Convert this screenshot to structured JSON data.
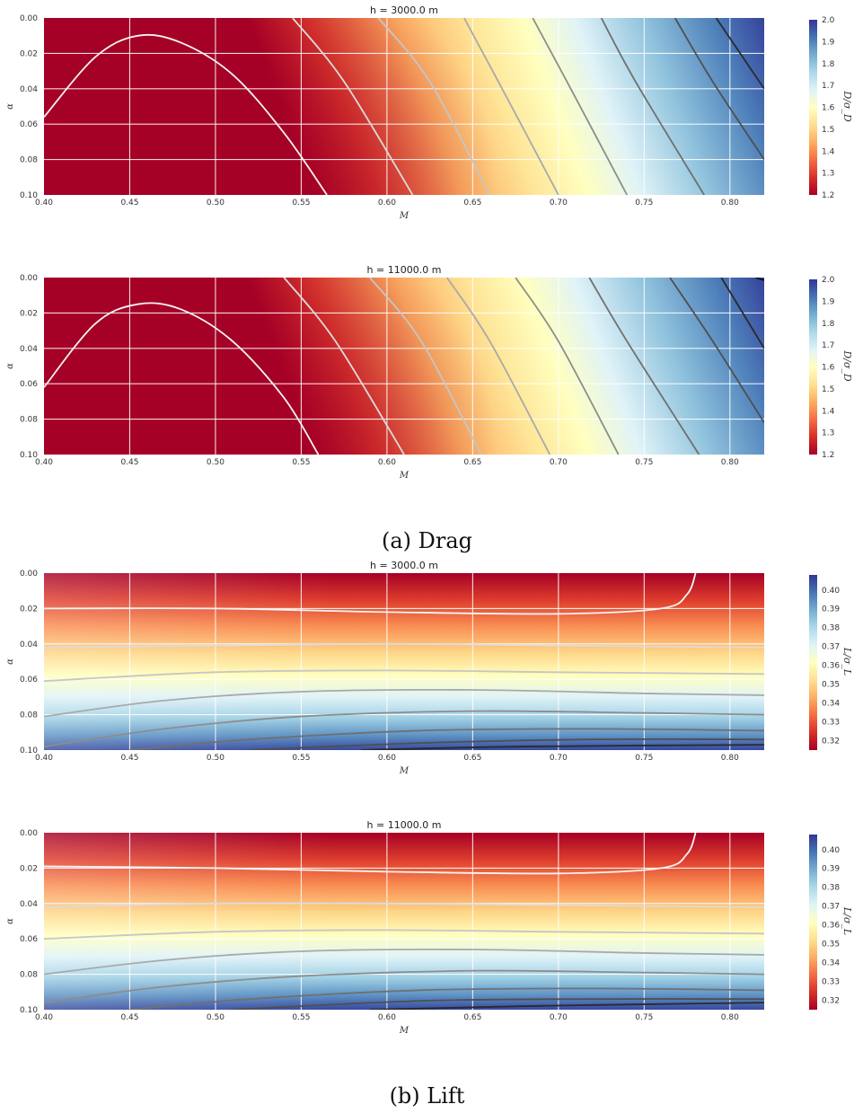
{
  "captions": {
    "a": "(a) Drag",
    "b": "(b) Lift"
  },
  "colormap": [
    "#a50026",
    "#d73027",
    "#f46d43",
    "#fdae61",
    "#fee090",
    "#ffffbf",
    "#e0f3f8",
    "#abd9e9",
    "#74add1",
    "#4575b4",
    "#313695"
  ],
  "chart_data": [
    {
      "type": "heatmap",
      "group": "drag",
      "title": "h = 3000.0 m",
      "xlabel": "M",
      "ylabel": "α",
      "colorbar_label": "D/σ_D",
      "xlim": [
        0.4,
        0.82
      ],
      "ylim": [
        0.0,
        0.1
      ],
      "y_inverted": true,
      "xticks": [
        "0.40",
        "0.45",
        "0.50",
        "0.55",
        "0.60",
        "0.65",
        "0.70",
        "0.75",
        "0.80"
      ],
      "yticks": [
        "0.00",
        "0.02",
        "0.04",
        "0.06",
        "0.08",
        "0.10"
      ],
      "color_range": [
        1.2,
        2.0
      ],
      "cbar_ticks": [
        "1.2",
        "1.3",
        "1.4",
        "1.5",
        "1.6",
        "1.7",
        "1.8",
        "1.9",
        "2.0"
      ],
      "contours": [
        {
          "points": [
            [
              0.4,
              0.056
            ],
            [
              0.43,
              0.022
            ],
            [
              0.455,
              0.01
            ],
            [
              0.48,
              0.014
            ],
            [
              0.51,
              0.032
            ],
            [
              0.54,
              0.065
            ],
            [
              0.565,
              0.1
            ]
          ]
        },
        {
          "points": [
            [
              0.545,
              0.0
            ],
            [
              0.575,
              0.036
            ],
            [
              0.615,
              0.1
            ]
          ]
        },
        {
          "points": [
            [
              0.595,
              0.0
            ],
            [
              0.625,
              0.036
            ],
            [
              0.66,
              0.1
            ]
          ]
        },
        {
          "points": [
            [
              0.645,
              0.0
            ],
            [
              0.665,
              0.036
            ],
            [
              0.7,
              0.1
            ]
          ]
        },
        {
          "points": [
            [
              0.685,
              0.0
            ],
            [
              0.705,
              0.036
            ],
            [
              0.74,
              0.1
            ]
          ]
        },
        {
          "points": [
            [
              0.725,
              0.0
            ],
            [
              0.745,
              0.036
            ],
            [
              0.785,
              0.1
            ]
          ]
        },
        {
          "points": [
            [
              0.768,
              0.0
            ],
            [
              0.79,
              0.036
            ],
            [
              0.82,
              0.08
            ]
          ]
        },
        {
          "points": [
            [
              0.792,
              0.0
            ],
            [
              0.82,
              0.04
            ]
          ]
        }
      ]
    },
    {
      "type": "heatmap",
      "group": "drag",
      "title": "h = 11000.0 m",
      "xlabel": "M",
      "ylabel": "α",
      "colorbar_label": "D/σ_D",
      "xlim": [
        0.4,
        0.82
      ],
      "ylim": [
        0.0,
        0.1
      ],
      "y_inverted": true,
      "xticks": [
        "0.40",
        "0.45",
        "0.50",
        "0.55",
        "0.60",
        "0.65",
        "0.70",
        "0.75",
        "0.80"
      ],
      "yticks": [
        "0.00",
        "0.02",
        "0.04",
        "0.06",
        "0.08",
        "0.10"
      ],
      "color_range": [
        1.2,
        2.0
      ],
      "cbar_ticks": [
        "1.2",
        "1.3",
        "1.4",
        "1.5",
        "1.6",
        "1.7",
        "1.8",
        "1.9",
        "2.0"
      ],
      "contours": [
        {
          "points": [
            [
              0.4,
              0.062
            ],
            [
              0.43,
              0.026
            ],
            [
              0.455,
              0.015
            ],
            [
              0.48,
              0.018
            ],
            [
              0.51,
              0.036
            ],
            [
              0.54,
              0.068
            ],
            [
              0.56,
              0.1
            ]
          ]
        },
        {
          "points": [
            [
              0.54,
              0.0
            ],
            [
              0.57,
              0.036
            ],
            [
              0.61,
              0.1
            ]
          ]
        },
        {
          "points": [
            [
              0.59,
              0.0
            ],
            [
              0.62,
              0.036
            ],
            [
              0.655,
              0.1
            ]
          ]
        },
        {
          "points": [
            [
              0.635,
              0.0
            ],
            [
              0.66,
              0.036
            ],
            [
              0.695,
              0.1
            ]
          ]
        },
        {
          "points": [
            [
              0.675,
              0.0
            ],
            [
              0.7,
              0.036
            ],
            [
              0.735,
              0.1
            ]
          ]
        },
        {
          "points": [
            [
              0.718,
              0.0
            ],
            [
              0.74,
              0.036
            ],
            [
              0.782,
              0.1
            ]
          ]
        },
        {
          "points": [
            [
              0.765,
              0.0
            ],
            [
              0.79,
              0.036
            ],
            [
              0.82,
              0.082
            ]
          ]
        },
        {
          "points": [
            [
              0.795,
              0.0
            ],
            [
              0.82,
              0.04
            ]
          ]
        },
        {
          "points": [
            [
              0.815,
              0.0
            ],
            [
              0.822,
              0.002
            ]
          ]
        }
      ]
    },
    {
      "type": "heatmap",
      "group": "lift",
      "title": "h = 3000.0 m",
      "xlabel": "M",
      "ylabel": "α",
      "colorbar_label": "L/σ_L",
      "xlim": [
        0.4,
        0.82
      ],
      "ylim": [
        0.0,
        0.1
      ],
      "y_inverted": true,
      "xticks": [
        "0.40",
        "0.45",
        "0.50",
        "0.55",
        "0.60",
        "0.65",
        "0.70",
        "0.75",
        "0.80"
      ],
      "yticks": [
        "0.00",
        "0.02",
        "0.04",
        "0.06",
        "0.08",
        "0.10"
      ],
      "color_range": [
        0.315,
        0.408
      ],
      "cbar_ticks": [
        "0.32",
        "0.33",
        "0.34",
        "0.35",
        "0.36",
        "0.37",
        "0.38",
        "0.39",
        "0.40"
      ],
      "contours": [
        {
          "points": [
            [
              0.4,
              0.02
            ],
            [
              0.5,
              0.02
            ],
            [
              0.6,
              0.022
            ],
            [
              0.7,
              0.023
            ],
            [
              0.76,
              0.02
            ],
            [
              0.775,
              0.012
            ],
            [
              0.78,
              0.0
            ]
          ]
        },
        {
          "points": [
            [
              0.4,
              0.042
            ],
            [
              0.5,
              0.041
            ],
            [
              0.6,
              0.04
            ],
            [
              0.7,
              0.041
            ],
            [
              0.82,
              0.042
            ]
          ]
        },
        {
          "points": [
            [
              0.4,
              0.061
            ],
            [
              0.5,
              0.056
            ],
            [
              0.6,
              0.055
            ],
            [
              0.7,
              0.056
            ],
            [
              0.82,
              0.057
            ]
          ]
        },
        {
          "points": [
            [
              0.4,
              0.081
            ],
            [
              0.47,
              0.072
            ],
            [
              0.55,
              0.067
            ],
            [
              0.65,
              0.066
            ],
            [
              0.75,
              0.068
            ],
            [
              0.82,
              0.069
            ]
          ]
        },
        {
          "points": [
            [
              0.4,
              0.098
            ],
            [
              0.47,
              0.088
            ],
            [
              0.55,
              0.081
            ],
            [
              0.65,
              0.078
            ],
            [
              0.75,
              0.079
            ],
            [
              0.82,
              0.08
            ]
          ]
        },
        {
          "points": [
            [
              0.45,
              0.1
            ],
            [
              0.52,
              0.094
            ],
            [
              0.62,
              0.089
            ],
            [
              0.72,
              0.088
            ],
            [
              0.82,
              0.089
            ]
          ]
        },
        {
          "points": [
            [
              0.52,
              0.1
            ],
            [
              0.62,
              0.096
            ],
            [
              0.72,
              0.094
            ],
            [
              0.82,
              0.094
            ]
          ]
        },
        {
          "points": [
            [
              0.585,
              0.1
            ],
            [
              0.68,
              0.098
            ],
            [
              0.82,
              0.097
            ]
          ]
        }
      ]
    },
    {
      "type": "heatmap",
      "group": "lift",
      "title": "h = 11000.0 m",
      "xlabel": "M",
      "ylabel": "α",
      "colorbar_label": "L/σ_L",
      "xlim": [
        0.4,
        0.82
      ],
      "ylim": [
        0.0,
        0.1
      ],
      "y_inverted": true,
      "xticks": [
        "0.40",
        "0.45",
        "0.50",
        "0.55",
        "0.60",
        "0.65",
        "0.70",
        "0.75",
        "0.80"
      ],
      "yticks": [
        "0.00",
        "0.02",
        "0.04",
        "0.06",
        "0.08",
        "0.10"
      ],
      "color_range": [
        0.315,
        0.408
      ],
      "cbar_ticks": [
        "0.32",
        "0.33",
        "0.34",
        "0.35",
        "0.36",
        "0.37",
        "0.38",
        "0.39",
        "0.40"
      ],
      "contours": [
        {
          "points": [
            [
              0.4,
              0.019
            ],
            [
              0.5,
              0.02
            ],
            [
              0.6,
              0.022
            ],
            [
              0.7,
              0.023
            ],
            [
              0.76,
              0.02
            ],
            [
              0.775,
              0.012
            ],
            [
              0.78,
              0.0
            ]
          ]
        },
        {
          "points": [
            [
              0.4,
              0.042
            ],
            [
              0.5,
              0.04
            ],
            [
              0.6,
              0.04
            ],
            [
              0.7,
              0.041
            ],
            [
              0.82,
              0.042
            ]
          ]
        },
        {
          "points": [
            [
              0.4,
              0.06
            ],
            [
              0.5,
              0.056
            ],
            [
              0.6,
              0.055
            ],
            [
              0.7,
              0.056
            ],
            [
              0.82,
              0.057
            ]
          ]
        },
        {
          "points": [
            [
              0.4,
              0.08
            ],
            [
              0.47,
              0.072
            ],
            [
              0.55,
              0.067
            ],
            [
              0.65,
              0.066
            ],
            [
              0.75,
              0.068
            ],
            [
              0.82,
              0.069
            ]
          ]
        },
        {
          "points": [
            [
              0.4,
              0.096
            ],
            [
              0.47,
              0.087
            ],
            [
              0.55,
              0.081
            ],
            [
              0.65,
              0.078
            ],
            [
              0.75,
              0.079
            ],
            [
              0.82,
              0.08
            ]
          ]
        },
        {
          "points": [
            [
              0.45,
              0.1
            ],
            [
              0.52,
              0.094
            ],
            [
              0.62,
              0.089
            ],
            [
              0.72,
              0.088
            ],
            [
              0.82,
              0.089
            ]
          ]
        },
        {
          "points": [
            [
              0.51,
              0.1
            ],
            [
              0.62,
              0.095
            ],
            [
              0.72,
              0.094
            ],
            [
              0.82,
              0.094
            ]
          ]
        },
        {
          "points": [
            [
              0.59,
              0.1
            ],
            [
              0.68,
              0.098
            ],
            [
              0.82,
              0.096
            ]
          ]
        }
      ]
    }
  ]
}
